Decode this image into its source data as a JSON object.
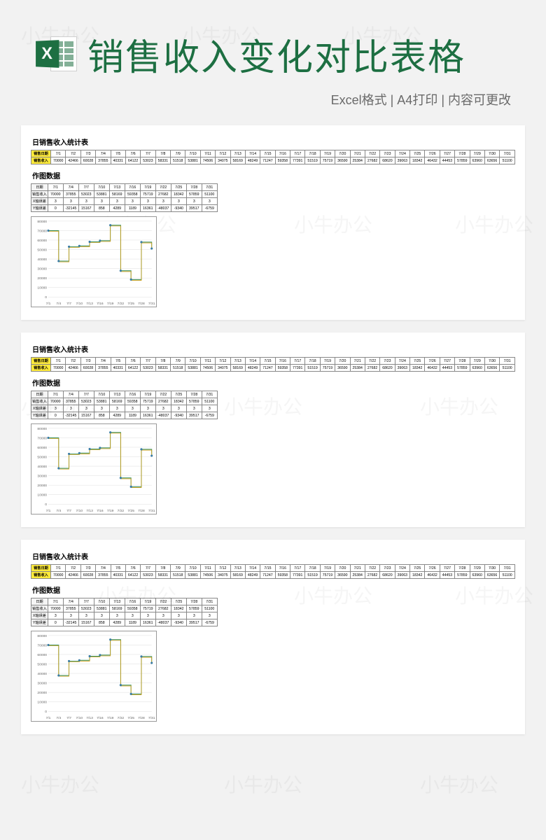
{
  "header": {
    "title": "销售收入变化对比表格",
    "subtitle": "Excel格式 | A4打印 | 内容可更改",
    "icon_letter": "X"
  },
  "section_titles": {
    "main": "日销售收入统计表",
    "sub": "作图数据"
  },
  "table1": {
    "row_labels": [
      "销售日期",
      "销售收入"
    ],
    "dates": [
      "7/1",
      "7/2",
      "7/3",
      "7/4",
      "7/5",
      "7/6",
      "7/7",
      "7/8",
      "7/9",
      "7/10",
      "7/11",
      "7/12",
      "7/13",
      "7/14",
      "7/15",
      "7/16",
      "7/17",
      "7/18",
      "7/19",
      "7/20",
      "7/21",
      "7/22",
      "7/23",
      "7/24",
      "7/25",
      "7/26",
      "7/27",
      "7/28",
      "7/29",
      "7/30",
      "7/31"
    ],
    "values": [
      70000,
      42466,
      60028,
      37855,
      40331,
      64122,
      53023,
      58331,
      51518,
      53881,
      74506,
      34075,
      58169,
      48249,
      71247,
      59358,
      77391,
      51519,
      75719,
      36590,
      25384,
      27682,
      68620,
      39063,
      18342,
      46432,
      44453,
      57859,
      63960,
      63656,
      51100
    ],
    "header_bg": "#ffeb3b"
  },
  "table2": {
    "row_labels": [
      "日期",
      "销售收入",
      "X轴误差",
      "Y轴误差"
    ],
    "dates": [
      "7/1",
      "7/4",
      "7/7",
      "7/10",
      "7/13",
      "7/16",
      "7/19",
      "7/22",
      "7/25",
      "7/28",
      "7/31"
    ],
    "sales": [
      70000,
      37855,
      53023,
      53881,
      58169,
      59358,
      75719,
      27682,
      18342,
      57859,
      51100
    ],
    "xerr": [
      3,
      3,
      3,
      3,
      3,
      3,
      3,
      3,
      3,
      3,
      3
    ],
    "yerr": [
      0,
      -32145,
      15167,
      858,
      4289,
      1189,
      16361,
      -48037,
      -9340,
      39517,
      -6759
    ]
  },
  "chart": {
    "type": "step-line-with-markers",
    "x_labels": [
      "7/1",
      "7/4",
      "7/7",
      "7/10",
      "7/13",
      "7/16",
      "7/19",
      "7/22",
      "7/25",
      "7/28",
      "7/31"
    ],
    "y_values": [
      70000,
      37855,
      53023,
      53881,
      58169,
      59358,
      75719,
      27682,
      18342,
      57859,
      51100
    ],
    "ylim": [
      0,
      80000
    ],
    "ytick_step": 10000,
    "grid_color": "#dddddd",
    "step_color": "#2e8b57",
    "step_color2": "#d4a017",
    "marker_color": "#3a7ca5",
    "background": "#ffffff",
    "label_fontsize": 5
  },
  "watermark_text": "小牛办公"
}
